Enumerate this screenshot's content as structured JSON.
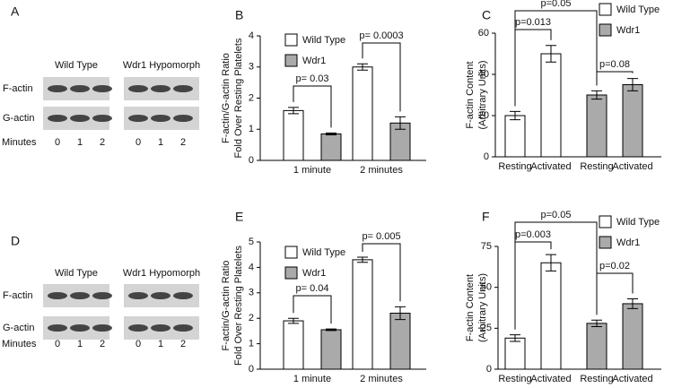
{
  "blots": [
    {
      "panel": "A",
      "groups": [
        "Wild Type",
        "Wdr1 Hypomorph"
      ],
      "rows": [
        "F-actin",
        "G-actin"
      ],
      "x_label": "Minutes",
      "lanes": [
        "0",
        "1",
        "2"
      ]
    },
    {
      "panel": "D",
      "groups": [
        "Wild Type",
        "Wdr1 Hypomorph"
      ],
      "rows": [
        "F-actin",
        "G-actin"
      ],
      "x_label": "Minutes",
      "lanes": [
        "0",
        "1",
        "2"
      ]
    }
  ],
  "chart_data": [
    {
      "type": "bar",
      "panel": "B",
      "y_label": [
        "F-actin/G-actin Ratio",
        "Fold Over Resting Platelets"
      ],
      "categories": [
        "1 minute",
        "2 minutes"
      ],
      "series": [
        {
          "name": "Wild Type",
          "color": "#ffffff",
          "values": [
            1.6,
            3.0
          ],
          "errors": [
            0.1,
            0.1
          ]
        },
        {
          "name": "Wdr1",
          "color": "#aaaaaa",
          "values": [
            0.85,
            1.2
          ],
          "errors": [
            0.03,
            0.2
          ]
        }
      ],
      "ylim": [
        0,
        4
      ],
      "yticks": [
        0,
        1,
        2,
        3,
        4
      ],
      "annotations": [
        "p= 0.03",
        "p= 0.0003"
      ]
    },
    {
      "type": "bar",
      "panel": "C",
      "y_label": [
        "F-actin Content",
        "(Arbitrary Units)"
      ],
      "categories": [
        "Resting",
        "Activated",
        "Resting",
        "Activated"
      ],
      "series": [
        {
          "name": "Wild Type",
          "color": "#ffffff",
          "values": [
            20,
            50,
            null,
            null
          ],
          "errors": [
            2,
            4,
            null,
            null
          ]
        },
        {
          "name": "Wdr1",
          "color": "#aaaaaa",
          "values": [
            null,
            null,
            30,
            35
          ],
          "errors": [
            null,
            null,
            2,
            3
          ]
        }
      ],
      "ylim": [
        0,
        60
      ],
      "yticks": [
        0,
        20,
        40,
        60
      ],
      "annotations": [
        "p=0.05",
        "p=0.013",
        "p=0.08"
      ]
    },
    {
      "type": "bar",
      "panel": "E",
      "y_label": [
        "F-actin/G-actin Ratio",
        "Fold Over Resting Platelets"
      ],
      "categories": [
        "1 minute",
        "2 minutes"
      ],
      "series": [
        {
          "name": "Wild Type",
          "color": "#ffffff",
          "values": [
            1.9,
            4.3
          ],
          "errors": [
            0.1,
            0.1
          ]
        },
        {
          "name": "Wdr1",
          "color": "#aaaaaa",
          "values": [
            1.55,
            2.2
          ],
          "errors": [
            0.03,
            0.25
          ]
        }
      ],
      "ylim": [
        0,
        5
      ],
      "yticks": [
        0,
        1,
        2,
        3,
        4,
        5
      ],
      "annotations": [
        "p= 0.04",
        "p= 0.005"
      ]
    },
    {
      "type": "bar",
      "panel": "F",
      "y_label": [
        "F-actin Content",
        "(Arbitrary Units)"
      ],
      "categories": [
        "Resting",
        "Activated",
        "Resting",
        "Activated"
      ],
      "series": [
        {
          "name": "Wild Type",
          "color": "#ffffff",
          "values": [
            19,
            65,
            null,
            null
          ],
          "errors": [
            2,
            5,
            null,
            null
          ]
        },
        {
          "name": "Wdr1",
          "color": "#aaaaaa",
          "values": [
            null,
            null,
            28,
            40
          ],
          "errors": [
            null,
            null,
            2,
            3
          ]
        }
      ],
      "ylim": [
        0,
        75
      ],
      "yticks": [
        0,
        25,
        50,
        75
      ],
      "annotations": [
        "p=0.05",
        "p=0.003",
        "p=0.02"
      ]
    }
  ]
}
